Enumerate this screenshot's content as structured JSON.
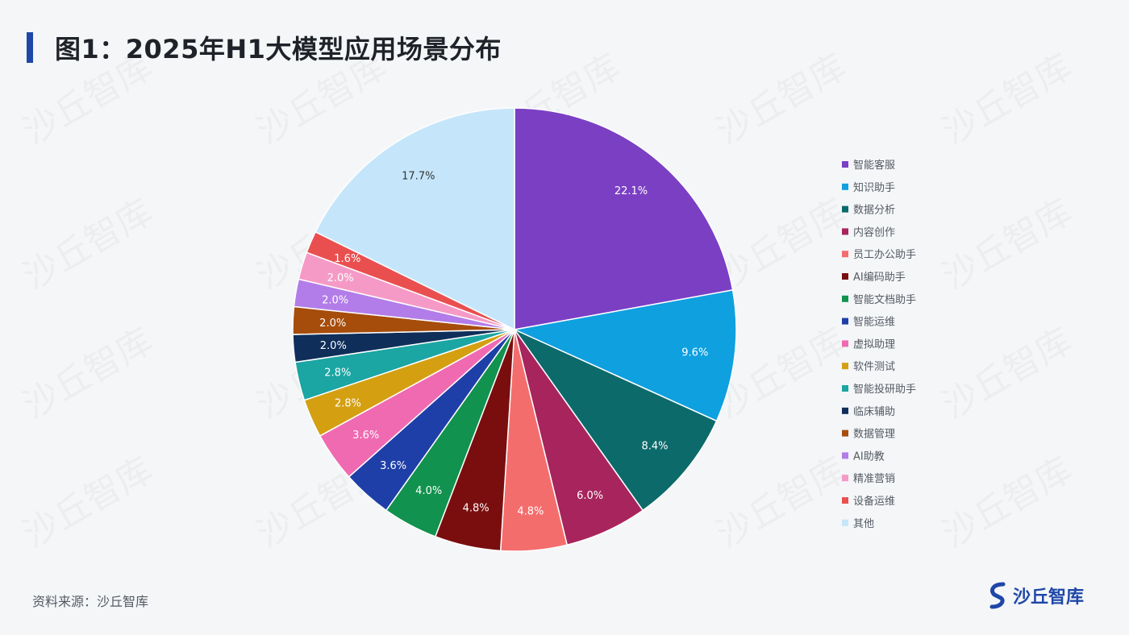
{
  "page": {
    "title": "图1：2025年H1大模型应用场景分布",
    "source": "资料来源：沙丘智库",
    "brand": "沙丘智库",
    "watermark": "沙丘智库",
    "accent_color": "#1f47a8"
  },
  "chart_data": {
    "type": "pie",
    "title": "图1：2025年H1大模型应用场景分布",
    "legend_position": "right",
    "start": "12 o'clock, clockwise",
    "slices": [
      {
        "label": "智能客服",
        "value": 22.1,
        "display": "22.1%",
        "color": "#7b3fc4",
        "label_color": "#ffffff"
      },
      {
        "label": "知识助手",
        "value": 9.6,
        "display": "9.6%",
        "color": "#0fa0e0",
        "label_color": "#ffffff"
      },
      {
        "label": "数据分析",
        "value": 8.4,
        "display": "8.4%",
        "color": "#0c6a6a",
        "label_color": "#ffffff"
      },
      {
        "label": "内容创作",
        "value": 6.0,
        "display": "6.0%",
        "color": "#a8245c",
        "label_color": "#ffffff"
      },
      {
        "label": "员工办公助手",
        "value": 4.8,
        "display": "4.8%",
        "color": "#f46d6d",
        "label_color": "#ffffff"
      },
      {
        "label": "AI编码助手",
        "value": 4.8,
        "display": "4.8%",
        "color": "#7a0e0e",
        "label_color": "#ffffff"
      },
      {
        "label": "智能文档助手",
        "value": 4.0,
        "display": "4.0%",
        "color": "#11924e",
        "label_color": "#ffffff"
      },
      {
        "label": "智能运维",
        "value": 3.6,
        "display": "3.6%",
        "color": "#1f3fa8",
        "label_color": "#ffffff"
      },
      {
        "label": "虚拟助理",
        "value": 3.6,
        "display": "3.6%",
        "color": "#f06ab2",
        "label_color": "#ffffff"
      },
      {
        "label": "软件测试",
        "value": 2.8,
        "display": "2.8%",
        "color": "#d4a012",
        "label_color": "#ffffff"
      },
      {
        "label": "智能投研助手",
        "value": 2.8,
        "display": "2.8%",
        "color": "#1ba5a3",
        "label_color": "#ffffff"
      },
      {
        "label": "临床辅助",
        "value": 2.0,
        "display": "2.0%",
        "color": "#0f2f5a",
        "label_color": "#ffffff"
      },
      {
        "label": "数据管理",
        "value": 2.0,
        "display": "2.0%",
        "color": "#a64d0c",
        "label_color": "#ffffff"
      },
      {
        "label": "AI助教",
        "value": 2.0,
        "display": "2.0%",
        "color": "#b27de8",
        "label_color": "#ffffff"
      },
      {
        "label": "精准营销",
        "value": 2.0,
        "display": "2.0%",
        "color": "#f59ac6",
        "label_color": "#ffffff"
      },
      {
        "label": "设备运维",
        "value": 1.6,
        "display": "1.6%",
        "color": "#ea4f4f",
        "label_color": "#ffffff"
      },
      {
        "label": "其他",
        "value": 17.7,
        "display": "17.7%",
        "color": "#c5e6fa",
        "label_color": "#333333"
      }
    ]
  }
}
